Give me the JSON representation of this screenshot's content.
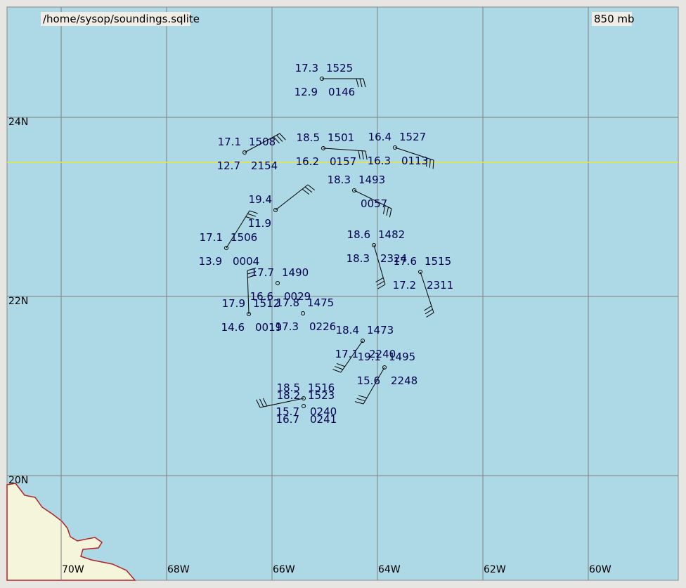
{
  "header": {
    "source": "/home/sysop/soundings.sqlite",
    "level": "850 mb"
  },
  "latitude_labels": [
    "24N",
    "22N",
    "20N"
  ],
  "longitude_labels": [
    "70W",
    "68W",
    "66W",
    "64W",
    "62W",
    "60W"
  ],
  "stations": [
    {
      "temperature": "17.3",
      "height": "1525",
      "dewpoint": "12.9",
      "time": "0146"
    },
    {
      "temperature": "17.1",
      "height": "1508",
      "dewpoint": "12.7",
      "time": "2154"
    },
    {
      "temperature": "18.5",
      "height": "1501",
      "dewpoint": "16.2",
      "time": "0157"
    },
    {
      "temperature": "16.4",
      "height": "1527",
      "dewpoint": "16.3",
      "time": "0113"
    },
    {
      "temperature": "18.3",
      "height": "1493",
      "time": "0057"
    },
    {
      "temperature": "19.4",
      "dewpoint": "11.9"
    },
    {
      "temperature": "17.1",
      "height": "1506",
      "dewpoint": "13.9",
      "time": "0004"
    },
    {
      "temperature": "18.6",
      "height": "1482",
      "dewpoint": "18.3",
      "time": "2324"
    },
    {
      "temperature": "17.6",
      "height": "1515",
      "dewpoint": "17.2",
      "time": "2311"
    },
    {
      "temperature": "17.9",
      "height": "1512",
      "dewpoint": "14.6",
      "time": "0019"
    },
    {
      "temperature": "17.8",
      "height": "1475",
      "dewpoint": "17.3",
      "time": "0226"
    },
    {
      "temperature": "17.7",
      "height": "1490",
      "dewpoint": "16.6",
      "time": "0029"
    },
    {
      "temperature": "18.4",
      "height": "1473",
      "dewpoint": "17.1",
      "time": "2240"
    },
    {
      "temperature": "19.1",
      "height": "1495",
      "dewpoint": "15.6",
      "time": "2248"
    },
    {
      "temperature": "18.5",
      "height": "1516",
      "dewpoint": "15.7",
      "time": "0240"
    },
    {
      "temperature": "18.2",
      "height": "1523",
      "dewpoint": "16.7",
      "time": "0241"
    }
  ]
}
